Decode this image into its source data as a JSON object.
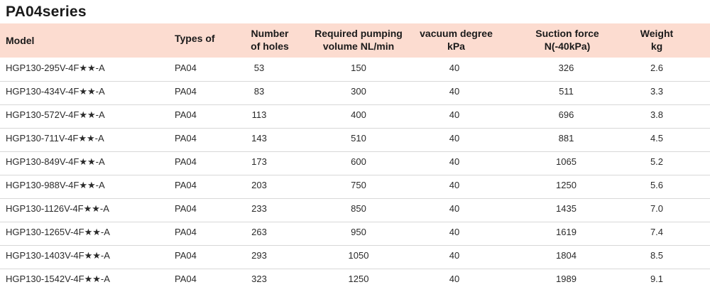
{
  "title": "PA04series",
  "columns": {
    "model": "Model",
    "types": "Types of",
    "holes_1": "Number",
    "holes_2": "of holes",
    "volume_1": "Required pumping",
    "volume_2": "volume NL/min",
    "vacuum_1": "vacuum degree",
    "vacuum_2": "kPa",
    "force_1": "Suction force",
    "force_2": "N(-40kPa)",
    "weight_1": "Weight",
    "weight_2": "kg"
  },
  "rows": [
    {
      "model": "HGP130-295V-4F★★-A",
      "type": "PA04",
      "holes": "53",
      "volume": "150",
      "vacuum": "40",
      "force": "326",
      "weight": "2.6"
    },
    {
      "model": "HGP130-434V-4F★★-A",
      "type": "PA04",
      "holes": "83",
      "volume": "300",
      "vacuum": "40",
      "force": "511",
      "weight": "3.3"
    },
    {
      "model": "HGP130-572V-4F★★-A",
      "type": "PA04",
      "holes": "113",
      "volume": "400",
      "vacuum": "40",
      "force": "696",
      "weight": "3.8"
    },
    {
      "model": "HGP130-711V-4F★★-A",
      "type": "PA04",
      "holes": "143",
      "volume": "510",
      "vacuum": "40",
      "force": "881",
      "weight": "4.5"
    },
    {
      "model": "HGP130-849V-4F★★-A",
      "type": "PA04",
      "holes": "173",
      "volume": "600",
      "vacuum": "40",
      "force": "1065",
      "weight": "5.2"
    },
    {
      "model": "HGP130-988V-4F★★-A",
      "type": "PA04",
      "holes": "203",
      "volume": "750",
      "vacuum": "40",
      "force": "1250",
      "weight": "5.6"
    },
    {
      "model": "HGP130-1126V-4F★★-A",
      "type": "PA04",
      "holes": "233",
      "volume": "850",
      "vacuum": "40",
      "force": "1435",
      "weight": "7.0"
    },
    {
      "model": "HGP130-1265V-4F★★-A",
      "type": "PA04",
      "holes": "263",
      "volume": "950",
      "vacuum": "40",
      "force": "1619",
      "weight": "7.4"
    },
    {
      "model": "HGP130-1403V-4F★★-A",
      "type": "PA04",
      "holes": "293",
      "volume": "1050",
      "vacuum": "40",
      "force": "1804",
      "weight": "8.5"
    },
    {
      "model": "HGP130-1542V-4F★★-A",
      "type": "PA04",
      "holes": "323",
      "volume": "1250",
      "vacuum": "40",
      "force": "1989",
      "weight": "9.1"
    }
  ]
}
